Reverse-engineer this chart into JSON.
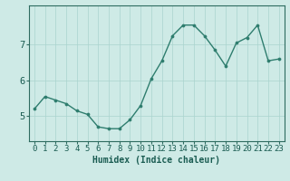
{
  "x": [
    0,
    1,
    2,
    3,
    4,
    5,
    6,
    7,
    8,
    9,
    10,
    11,
    12,
    13,
    14,
    15,
    16,
    17,
    18,
    19,
    20,
    21,
    22,
    23
  ],
  "y": [
    5.2,
    5.55,
    5.45,
    5.35,
    5.15,
    5.05,
    4.7,
    4.65,
    4.65,
    4.9,
    5.3,
    6.05,
    6.55,
    7.25,
    7.55,
    7.55,
    7.25,
    6.85,
    6.4,
    7.05,
    7.2,
    7.55,
    6.55,
    6.6
  ],
  "line_color": "#2e7d6e",
  "marker": "o",
  "markersize": 2.2,
  "linewidth": 1.0,
  "background_color": "#ceeae6",
  "grid_color": "#aad4ce",
  "axis_color": "#2e6b60",
  "tick_label_color": "#1a5c52",
  "xlabel": "Humidex (Indice chaleur)",
  "xlabel_fontsize": 7,
  "yticks": [
    5,
    6,
    7
  ],
  "ylim": [
    4.3,
    8.1
  ],
  "xlim": [
    -0.5,
    23.5
  ],
  "xticks": [
    0,
    1,
    2,
    3,
    4,
    5,
    6,
    7,
    8,
    9,
    10,
    11,
    12,
    13,
    14,
    15,
    16,
    17,
    18,
    19,
    20,
    21,
    22,
    23
  ],
  "tick_fontsize": 6.5
}
